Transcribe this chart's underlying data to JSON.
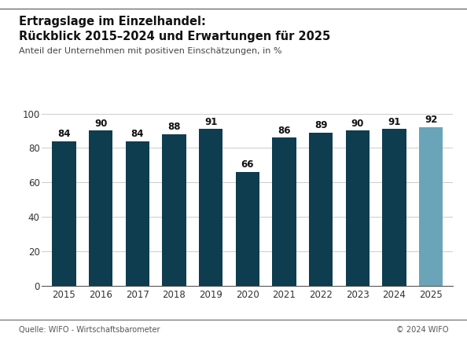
{
  "title_line1": "Ertragslage im Einzelhandel:",
  "title_line2": "Rückblick 2015–2024 und Erwartungen für 2025",
  "subtitle": "Anteil der Unternehmen mit positiven Einschätzungen, in %",
  "categories": [
    "2015",
    "2016",
    "2017",
    "2018",
    "2019",
    "2020",
    "2021",
    "2022",
    "2023",
    "2024",
    "2025"
  ],
  "values": [
    84,
    90,
    84,
    88,
    91,
    66,
    86,
    89,
    90,
    91,
    92
  ],
  "bar_colors": [
    "#0d3d4f",
    "#0d3d4f",
    "#0d3d4f",
    "#0d3d4f",
    "#0d3d4f",
    "#0d3d4f",
    "#0d3d4f",
    "#0d3d4f",
    "#0d3d4f",
    "#0d3d4f",
    "#6aa4b8"
  ],
  "ylim": [
    0,
    100
  ],
  "yticks": [
    0,
    20,
    40,
    60,
    80,
    100
  ],
  "background_color": "#ffffff",
  "grid_color": "#cccccc",
  "bar_label_fontsize": 8.5,
  "axis_tick_fontsize": 8.5,
  "title1_fontsize": 10.5,
  "title2_fontsize": 10.5,
  "subtitle_fontsize": 8,
  "footer_left": "Quelle: WIFO - Wirtschaftsbarometer",
  "footer_right": "© 2024 WIFO",
  "footer_fontsize": 7,
  "line_color": "#555555"
}
